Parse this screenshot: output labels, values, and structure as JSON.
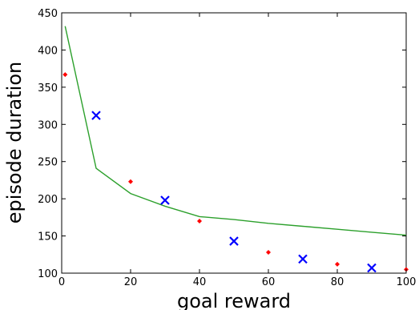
{
  "chart_data": {
    "type": "scatter",
    "title": "",
    "xlabel": "goal reward",
    "ylabel": "episode duration",
    "xlim": [
      0,
      100
    ],
    "ylim": [
      100,
      450
    ],
    "x_ticks": [
      0,
      20,
      40,
      60,
      80,
      100
    ],
    "y_ticks": [
      100,
      150,
      200,
      250,
      300,
      350,
      400,
      450
    ],
    "x_tick_labels": [
      "0",
      "20",
      "40",
      "60",
      "80",
      "100"
    ],
    "y_tick_labels": [
      "100",
      "150",
      "200",
      "250",
      "300",
      "350",
      "400",
      "450"
    ],
    "grid": false,
    "legend": "none",
    "series": [
      {
        "type": "line",
        "color": "#2ca02c",
        "x": [
          1,
          10,
          20,
          30,
          40,
          50,
          60,
          70,
          80,
          90,
          100
        ],
        "y": [
          432,
          241,
          207,
          190,
          176,
          172,
          167,
          163,
          159,
          155,
          151
        ]
      },
      {
        "type": "scatter",
        "marker": "diamond",
        "color": "#ff0000",
        "x": [
          1,
          20,
          40,
          60,
          80,
          100
        ],
        "y": [
          367,
          223,
          170,
          128,
          112,
          105
        ]
      },
      {
        "type": "scatter",
        "marker": "x",
        "color": "#0000ff",
        "x": [
          10,
          30,
          50,
          70,
          90
        ],
        "y": [
          312,
          198,
          143,
          119,
          107
        ]
      }
    ]
  }
}
